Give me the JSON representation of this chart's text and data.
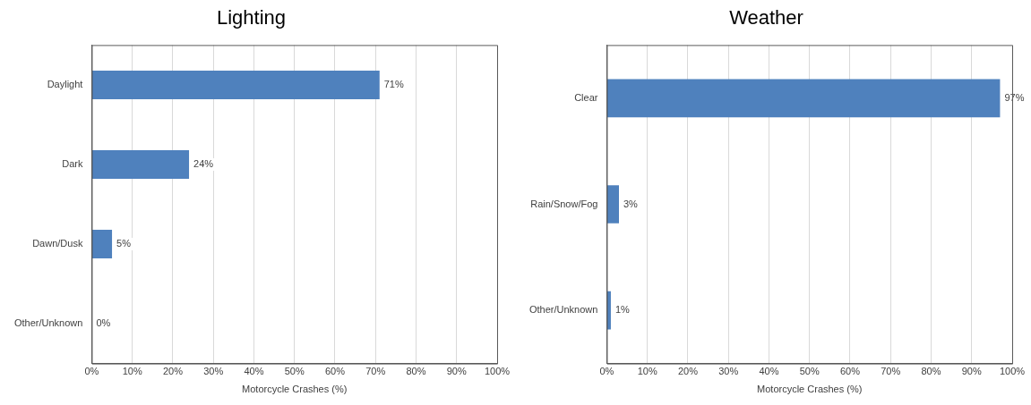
{
  "chart_data": [
    {
      "type": "bar",
      "title": "Lighting",
      "orientation": "horizontal",
      "categories": [
        "Daylight",
        "Dark",
        "Dawn/Dusk",
        "Other/Unknown"
      ],
      "values": [
        71,
        24,
        5,
        0
      ],
      "color": "#4f81bd",
      "value_labels": [
        "71%",
        "24%",
        "5%",
        "0%"
      ],
      "xlabel": "Motorcycle Crashes (%)",
      "xlim": [
        0,
        100
      ],
      "xticks": [
        {
          "value": 0,
          "label": "0%"
        },
        {
          "value": 10,
          "label": "10%"
        },
        {
          "value": 20,
          "label": "20%"
        },
        {
          "value": 30,
          "label": "30%"
        },
        {
          "value": 40,
          "label": "40%"
        },
        {
          "value": 50,
          "label": "50%"
        },
        {
          "value": 60,
          "label": "60%"
        },
        {
          "value": 70,
          "label": "70%"
        },
        {
          "value": 80,
          "label": "80%"
        },
        {
          "value": 90,
          "label": "90%"
        },
        {
          "value": 100,
          "label": "100%"
        }
      ],
      "grid": "x",
      "legend": false
    },
    {
      "type": "bar",
      "title": "Weather",
      "orientation": "horizontal",
      "categories": [
        "Clear",
        "Rain/Snow/Fog",
        "Other/Unknown"
      ],
      "values": [
        97,
        3,
        1
      ],
      "color": "#4f81bd",
      "value_labels": [
        "97%",
        "3%",
        "1%"
      ],
      "xlabel": "Motorcycle Crashes (%)",
      "xlim": [
        0,
        100
      ],
      "xticks": [
        {
          "value": 0,
          "label": "0%"
        },
        {
          "value": 10,
          "label": "10%"
        },
        {
          "value": 20,
          "label": "20%"
        },
        {
          "value": 30,
          "label": "30%"
        },
        {
          "value": 40,
          "label": "40%"
        },
        {
          "value": 50,
          "label": "50%"
        },
        {
          "value": 60,
          "label": "60%"
        },
        {
          "value": 70,
          "label": "70%"
        },
        {
          "value": 80,
          "label": "80%"
        },
        {
          "value": 90,
          "label": "90%"
        },
        {
          "value": 100,
          "label": "100%"
        }
      ],
      "grid": "x",
      "legend": false
    }
  ]
}
